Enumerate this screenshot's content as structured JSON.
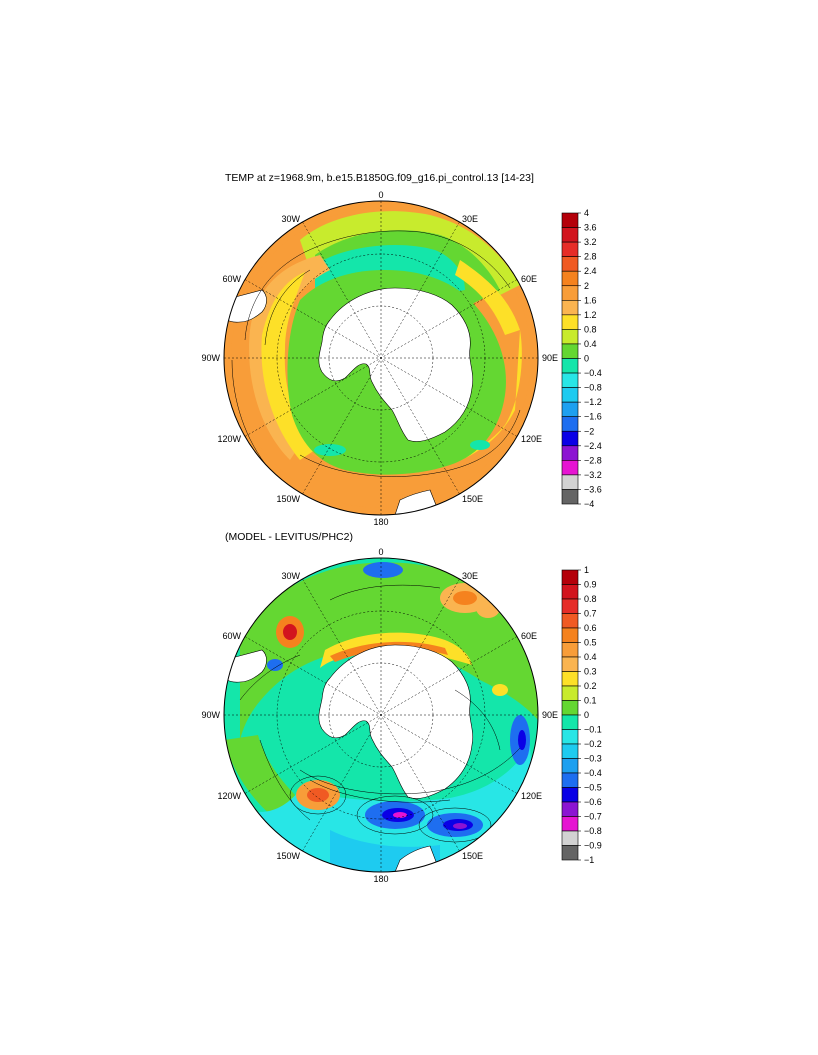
{
  "panels": [
    {
      "id": "temp",
      "title": "TEMP at z=1968.9m, b.e15.B1850G.f09_g16.pi_control.13 [14-23]",
      "longitude_labels": [
        "0",
        "30E",
        "60E",
        "90E",
        "120E",
        "150E",
        "180",
        "150W",
        "120W",
        "90W",
        "60W",
        "30W"
      ],
      "colorbar": {
        "levels": [
          "4",
          "3.6",
          "3.2",
          "2.8",
          "2.4",
          "2",
          "1.6",
          "1.2",
          "0.8",
          "0.4",
          "0",
          "−0.4",
          "−0.8",
          "−1.2",
          "−1.6",
          "−2",
          "−2.4",
          "−2.8",
          "−3.2",
          "−3.6",
          "−4"
        ],
        "colors": [
          "#b4000a",
          "#d2141e",
          "#e62d28",
          "#f05a23",
          "#f5821e",
          "#f89d39",
          "#fab450",
          "#fde028",
          "#c8eb2d",
          "#64d732",
          "#14e6aa",
          "#28e6e6",
          "#1ecbf0",
          "#1ea0f0",
          "#1e6ef0",
          "#0a00e6",
          "#8c14d2",
          "#e614d2",
          "#d2d2d2",
          "#646464"
        ]
      }
    },
    {
      "id": "diff",
      "title": "(MODEL - LEVITUS/PHC2)",
      "longitude_labels": [
        "0",
        "30E",
        "60E",
        "90E",
        "120E",
        "150E",
        "180",
        "150W",
        "120W",
        "90W",
        "60W",
        "30W"
      ],
      "colorbar": {
        "levels": [
          "1",
          "0.9",
          "0.8",
          "0.7",
          "0.6",
          "0.5",
          "0.4",
          "0.3",
          "0.2",
          "0.1",
          "0",
          "−0.1",
          "−0.2",
          "−0.3",
          "−0.4",
          "−0.5",
          "−0.6",
          "−0.7",
          "−0.8",
          "−0.9",
          "−1"
        ],
        "colors": [
          "#b4000a",
          "#d2141e",
          "#e62d28",
          "#f05a23",
          "#f5821e",
          "#f89d39",
          "#fab450",
          "#fde028",
          "#c8eb2d",
          "#64d732",
          "#14e6aa",
          "#28e6e6",
          "#1ecbf0",
          "#1ea0f0",
          "#1e6ef0",
          "#0a00e6",
          "#8c14d2",
          "#e614d2",
          "#d2d2d2",
          "#646464"
        ]
      }
    }
  ],
  "palette": {
    "land": "#ffffff",
    "coast": "#000000",
    "contour": "#000000"
  }
}
